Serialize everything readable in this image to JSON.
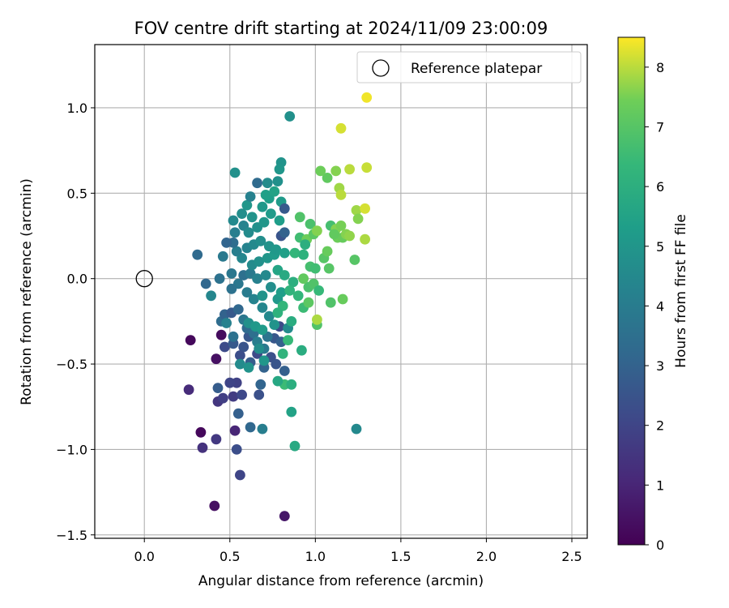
{
  "chart_data": {
    "type": "scatter",
    "title": "FOV centre drift starting at 2024/11/09 23:00:09",
    "xlabel": "Angular distance from reference (arcmin)",
    "ylabel": "Rotation from reference (arcmin)",
    "xlim": [
      -0.29,
      2.59
    ],
    "ylim": [
      -1.52,
      1.37
    ],
    "xticks": [
      0.0,
      0.5,
      1.0,
      1.5,
      2.0,
      2.5
    ],
    "xtick_labels": [
      "0.0",
      "0.5",
      "1.0",
      "1.5",
      "2.0",
      "2.5"
    ],
    "yticks": [
      -1.5,
      -1.0,
      -0.5,
      0.0,
      0.5,
      1.0
    ],
    "ytick_labels": [
      "−1.5",
      "−1.0",
      "−0.5",
      "0.0",
      "0.5",
      "1.0"
    ],
    "grid": true,
    "colormap": "viridis",
    "colorbar": {
      "label": "Hours from first FF file",
      "range": [
        0,
        8.5
      ],
      "ticks": [
        0,
        1,
        2,
        3,
        4,
        5,
        6,
        7,
        8
      ],
      "tick_labels": [
        "0",
        "1",
        "2",
        "3",
        "4",
        "5",
        "6",
        "7",
        "8"
      ]
    },
    "legend": {
      "placement": "upper right",
      "entries": [
        {
          "label": "Reference platepar",
          "marker": "open-circle",
          "x": 0.0,
          "y": 0.0
        }
      ]
    },
    "points": [
      [
        0.27,
        -0.36,
        0.2
      ],
      [
        0.45,
        -0.33,
        0.3
      ],
      [
        0.42,
        -0.47,
        0.4
      ],
      [
        0.33,
        -0.9,
        0.2
      ],
      [
        0.41,
        -1.33,
        0.4
      ],
      [
        0.82,
        -1.39,
        0.6
      ],
      [
        0.26,
        -0.65,
        1.2
      ],
      [
        0.34,
        -0.99,
        1.4
      ],
      [
        0.53,
        -0.89,
        1.0
      ],
      [
        0.42,
        -0.94,
        1.6
      ],
      [
        0.43,
        -0.72,
        1.5
      ],
      [
        0.46,
        -0.7,
        1.8
      ],
      [
        0.54,
        -0.61,
        1.9
      ],
      [
        0.52,
        -0.69,
        1.7
      ],
      [
        0.56,
        -1.15,
        2.0
      ],
      [
        0.54,
        -1.0,
        2.3
      ],
      [
        0.5,
        -0.61,
        2.0
      ],
      [
        0.55,
        -0.79,
        2.9
      ],
      [
        0.62,
        -0.87,
        3.2
      ],
      [
        0.69,
        -0.88,
        4.1
      ],
      [
        0.67,
        -0.68,
        2.4
      ],
      [
        0.47,
        -0.4,
        2.2
      ],
      [
        0.43,
        -0.64,
        2.8
      ],
      [
        0.57,
        -0.68,
        2.1
      ],
      [
        0.58,
        -0.4,
        2.5
      ],
      [
        0.61,
        -0.34,
        2.6
      ],
      [
        0.52,
        -0.38,
        2.7
      ],
      [
        0.56,
        -0.45,
        2.3
      ],
      [
        0.66,
        -0.44,
        2.2
      ],
      [
        0.74,
        -0.46,
        2.4
      ],
      [
        0.62,
        -0.49,
        2.8
      ],
      [
        0.7,
        -0.52,
        3.0
      ],
      [
        0.77,
        -0.5,
        2.5
      ],
      [
        0.82,
        -0.54,
        2.9
      ],
      [
        0.79,
        -0.28,
        2.2
      ],
      [
        0.76,
        -0.35,
        2.6
      ],
      [
        0.68,
        -0.62,
        3.1
      ],
      [
        0.45,
        -0.25,
        3.4
      ],
      [
        0.47,
        -0.21,
        3.0
      ],
      [
        0.51,
        -0.2,
        2.7
      ],
      [
        0.55,
        -0.18,
        3.2
      ],
      [
        0.52,
        -0.34,
        3.6
      ],
      [
        0.6,
        -0.29,
        3.3
      ],
      [
        0.64,
        -0.32,
        3.5
      ],
      [
        0.72,
        -0.34,
        3.7
      ],
      [
        0.7,
        -0.41,
        3.9
      ],
      [
        0.66,
        -0.37,
        4.1
      ],
      [
        0.58,
        -0.24,
        3.8
      ],
      [
        0.48,
        -0.26,
        4.2
      ],
      [
        0.56,
        -0.5,
        4.6
      ],
      [
        0.61,
        -0.52,
        4.9
      ],
      [
        0.7,
        -0.48,
        5.0
      ],
      [
        0.67,
        -0.41,
        4.7
      ],
      [
        0.73,
        -0.22,
        4.5
      ],
      [
        0.61,
        -0.26,
        4.8
      ],
      [
        0.65,
        -0.28,
        5.1
      ],
      [
        0.69,
        -0.3,
        5.2
      ],
      [
        0.76,
        -0.27,
        4.9
      ],
      [
        0.69,
        -0.17,
        4.4
      ],
      [
        0.64,
        -0.12,
        4.3
      ],
      [
        0.6,
        -0.08,
        4.0
      ],
      [
        0.55,
        -0.03,
        3.8
      ],
      [
        0.51,
        -0.06,
        3.6
      ],
      [
        0.58,
        0.02,
        3.5
      ],
      [
        0.62,
        0.03,
        3.9
      ],
      [
        0.66,
        0.0,
        4.2
      ],
      [
        0.71,
        0.02,
        4.5
      ],
      [
        0.74,
        -0.05,
        4.7
      ],
      [
        0.69,
        -0.1,
        4.9
      ],
      [
        0.78,
        -0.12,
        5.1
      ],
      [
        0.8,
        -0.08,
        5.3
      ],
      [
        0.63,
        0.08,
        4.6
      ],
      [
        0.67,
        0.1,
        4.8
      ],
      [
        0.72,
        0.12,
        5.0
      ],
      [
        0.76,
        0.14,
        5.2
      ],
      [
        0.57,
        0.12,
        4.4
      ],
      [
        0.54,
        0.16,
        4.1
      ],
      [
        0.6,
        0.18,
        4.3
      ],
      [
        0.64,
        0.2,
        4.5
      ],
      [
        0.68,
        0.22,
        4.7
      ],
      [
        0.73,
        0.19,
        4.9
      ],
      [
        0.77,
        0.17,
        5.1
      ],
      [
        0.82,
        0.15,
        5.4
      ],
      [
        0.52,
        0.21,
        3.4
      ],
      [
        0.48,
        0.21,
        3.1
      ],
      [
        0.51,
        0.03,
        3.8
      ],
      [
        0.46,
        0.13,
        3.9
      ],
      [
        0.53,
        0.27,
        4.1
      ],
      [
        0.58,
        0.31,
        4.3
      ],
      [
        0.61,
        0.27,
        4.6
      ],
      [
        0.66,
        0.3,
        4.8
      ],
      [
        0.7,
        0.33,
        5.0
      ],
      [
        0.74,
        0.38,
        5.2
      ],
      [
        0.79,
        0.34,
        5.3
      ],
      [
        0.63,
        0.36,
        4.9
      ],
      [
        0.57,
        0.38,
        4.7
      ],
      [
        0.52,
        0.34,
        4.5
      ],
      [
        0.6,
        0.43,
        5.0
      ],
      [
        0.69,
        0.42,
        5.1
      ],
      [
        0.73,
        0.47,
        5.3
      ],
      [
        0.62,
        0.48,
        4.2
      ],
      [
        0.71,
        0.49,
        5.4
      ],
      [
        0.76,
        0.51,
        5.5
      ],
      [
        0.8,
        0.45,
        5.2
      ],
      [
        0.72,
        0.56,
        4.6
      ],
      [
        0.78,
        0.57,
        4.8
      ],
      [
        0.66,
        0.56,
        3.3
      ],
      [
        0.53,
        0.62,
        4.8
      ],
      [
        0.8,
        0.68,
        4.9
      ],
      [
        0.79,
        0.64,
        5.0
      ],
      [
        0.85,
        0.95,
        4.8
      ],
      [
        0.31,
        0.14,
        3.3
      ],
      [
        0.36,
        -0.03,
        3.2
      ],
      [
        0.44,
        0.0,
        3.6
      ],
      [
        0.39,
        -0.1,
        4.4
      ],
      [
        0.82,
        0.41,
        2.7
      ],
      [
        0.8,
        0.25,
        2.5
      ],
      [
        0.8,
        -0.37,
        2.9
      ],
      [
        0.84,
        -0.29,
        4.6
      ],
      [
        0.82,
        0.27,
        3.0
      ],
      [
        0.78,
        0.05,
        5.6
      ],
      [
        0.82,
        0.02,
        5.8
      ],
      [
        0.87,
        -0.02,
        6.0
      ],
      [
        0.85,
        -0.07,
        6.2
      ],
      [
        0.81,
        -0.16,
        6.3
      ],
      [
        0.86,
        -0.25,
        5.9
      ],
      [
        0.78,
        -0.2,
        6.1
      ],
      [
        0.84,
        -0.36,
        6.4
      ],
      [
        0.81,
        -0.44,
        6.2
      ],
      [
        0.82,
        -0.62,
        6.5
      ],
      [
        0.86,
        -0.62,
        6.0
      ],
      [
        0.78,
        -0.6,
        5.7
      ],
      [
        0.86,
        -0.78,
        5.5
      ],
      [
        0.88,
        -0.98,
        5.8
      ],
      [
        0.92,
        -0.42,
        5.9
      ],
      [
        0.9,
        -0.1,
        6.3
      ],
      [
        0.93,
        -0.17,
        6.5
      ],
      [
        0.96,
        -0.05,
        6.8
      ],
      [
        0.99,
        -0.03,
        6.9
      ],
      [
        0.96,
        -0.14,
        7.1
      ],
      [
        0.93,
        0.0,
        7.2
      ],
      [
        0.97,
        0.07,
        6.7
      ],
      [
        1.0,
        0.06,
        6.6
      ],
      [
        1.02,
        -0.07,
        6.4
      ],
      [
        1.01,
        -0.27,
        6.9
      ],
      [
        1.01,
        -0.24,
        7.9
      ],
      [
        0.88,
        0.15,
        6.3
      ],
      [
        0.93,
        0.14,
        6.1
      ],
      [
        0.91,
        0.24,
        6.6
      ],
      [
        0.95,
        0.23,
        7.4
      ],
      [
        0.97,
        0.32,
        6.8
      ],
      [
        0.99,
        0.26,
        7.1
      ],
      [
        1.01,
        0.28,
        7.6
      ],
      [
        0.91,
        0.36,
        6.9
      ],
      [
        0.94,
        0.2,
        6.0
      ],
      [
        1.05,
        0.12,
        7.0
      ],
      [
        1.07,
        0.16,
        7.3
      ],
      [
        1.08,
        0.06,
        7.0
      ],
      [
        1.09,
        0.31,
        6.7
      ],
      [
        1.13,
        0.24,
        7.4
      ],
      [
        1.12,
        0.29,
        7.6
      ],
      [
        1.15,
        0.31,
        7.5
      ],
      [
        1.16,
        0.24,
        7.3
      ],
      [
        1.18,
        0.26,
        7.6
      ],
      [
        1.2,
        0.25,
        7.7
      ],
      [
        1.11,
        0.26,
        7.2
      ],
      [
        1.09,
        -0.14,
        6.9
      ],
      [
        1.16,
        -0.12,
        7.3
      ],
      [
        1.23,
        0.11,
        7.0
      ],
      [
        1.24,
        0.4,
        7.8
      ],
      [
        1.29,
        0.41,
        8.2
      ],
      [
        1.25,
        0.35,
        7.6
      ],
      [
        1.29,
        0.23,
        7.9
      ],
      [
        1.07,
        0.59,
        7.2
      ],
      [
        1.03,
        0.63,
        7.4
      ],
      [
        1.12,
        0.63,
        7.6
      ],
      [
        1.14,
        0.53,
        7.8
      ],
      [
        1.15,
        0.49,
        8.0
      ],
      [
        1.2,
        0.64,
        8.0
      ],
      [
        1.3,
        0.65,
        8.1
      ],
      [
        1.15,
        0.88,
        8.2
      ],
      [
        1.3,
        1.06,
        8.4
      ],
      [
        1.24,
        -0.88,
        4.5
      ]
    ]
  }
}
